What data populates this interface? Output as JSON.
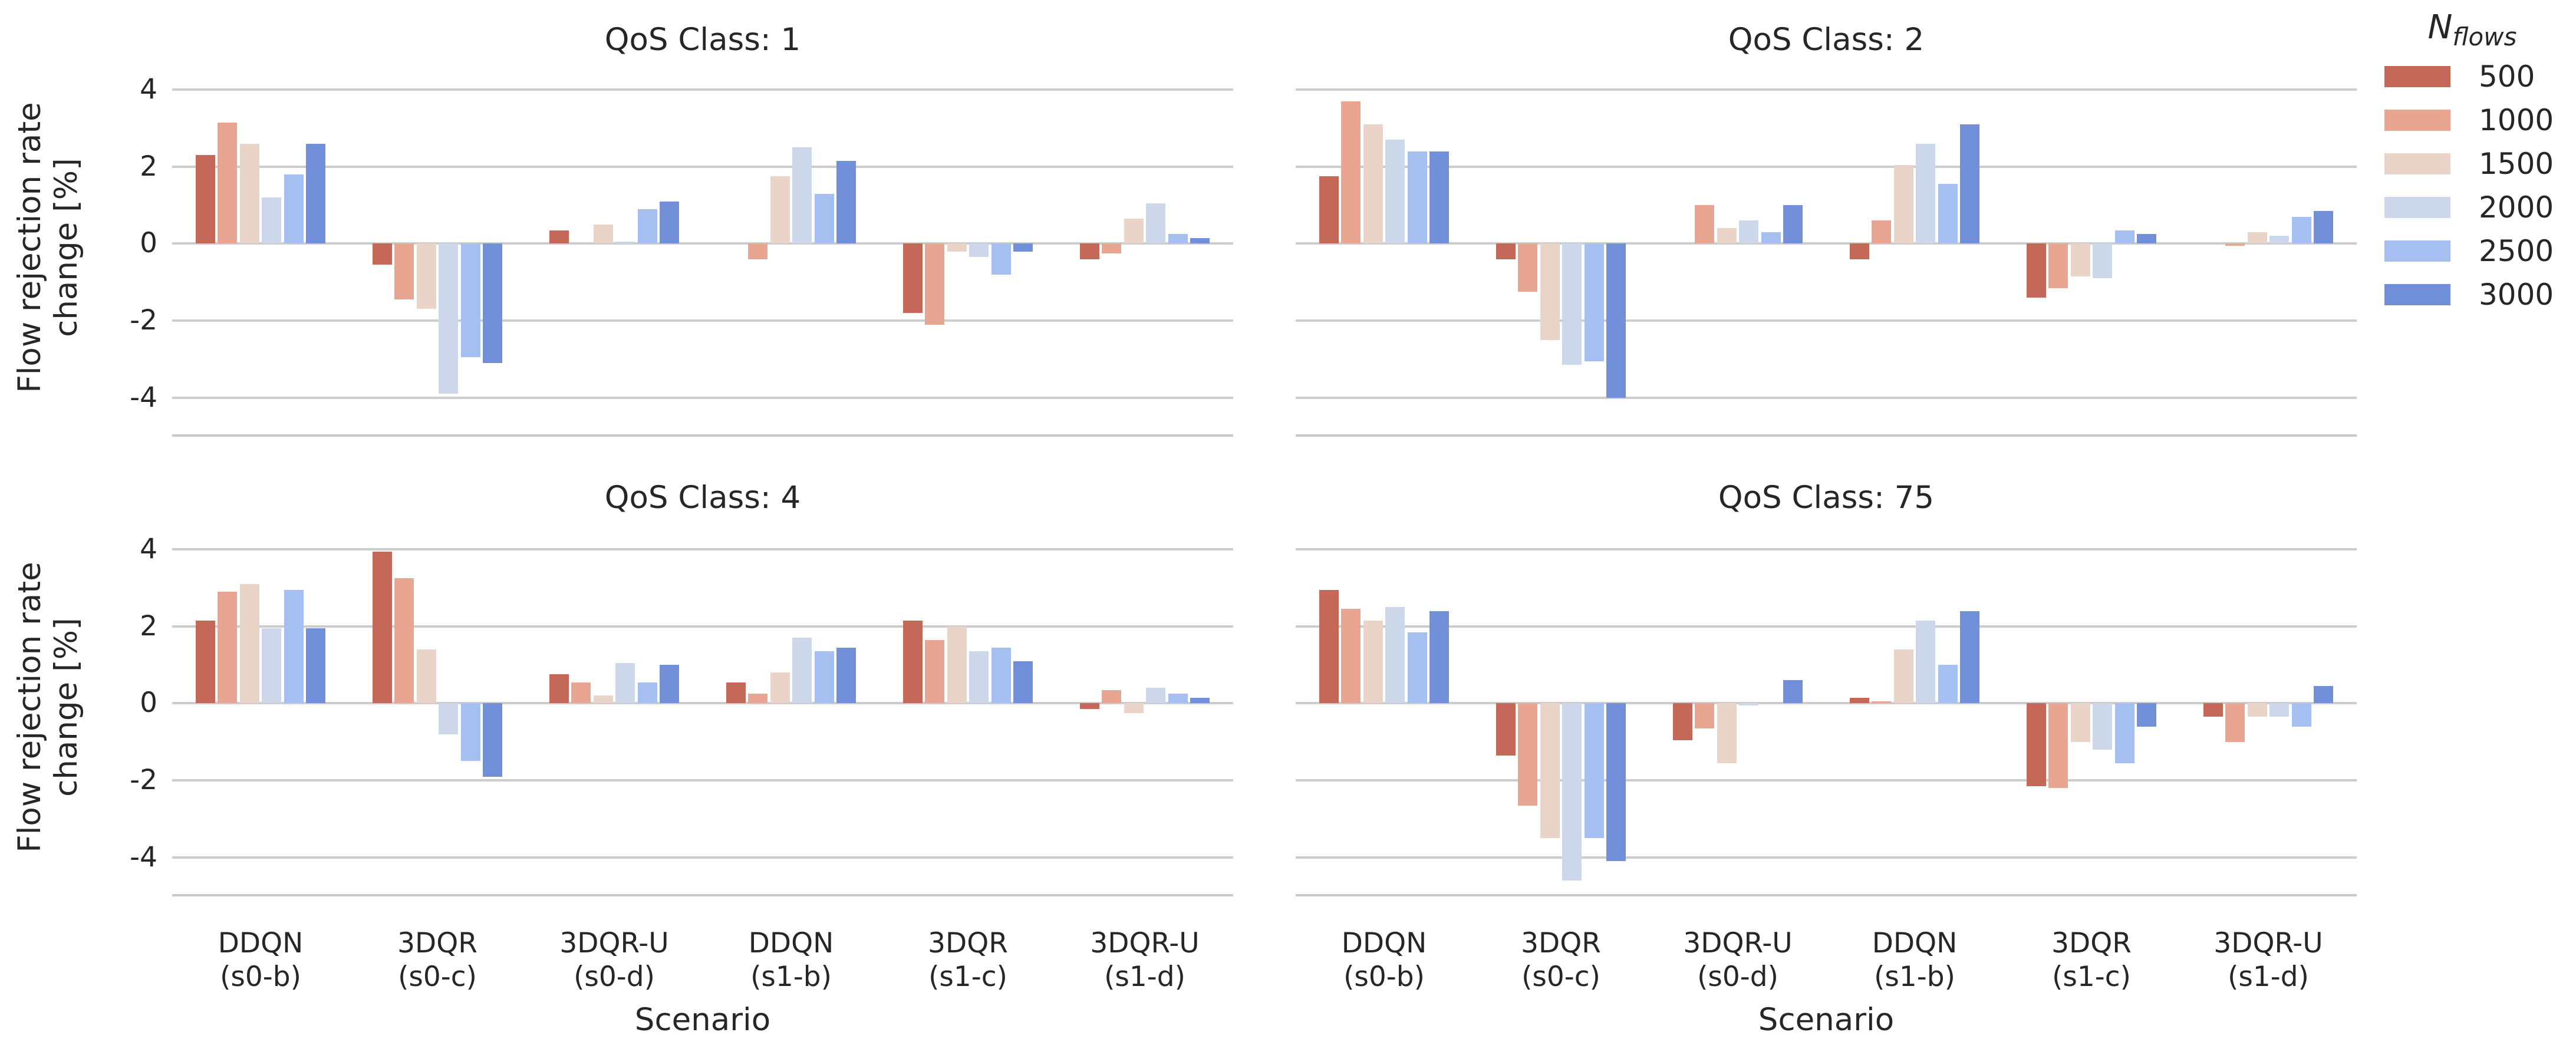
{
  "figure": {
    "ylabel_line1": "Flow rejection rate",
    "ylabel_line2": "change [%]",
    "xlabel": "Scenario",
    "yticks": [
      4,
      2,
      0,
      -2,
      -4
    ],
    "ylim": [
      -5.0,
      4.8
    ],
    "category_labels": [
      {
        "l1": "DDQN",
        "l2": "(s0-b)"
      },
      {
        "l1": "3DQR",
        "l2": "(s0-c)"
      },
      {
        "l1": "3DQR-U",
        "l2": "(s0-d)"
      },
      {
        "l1": "DDQN",
        "l2": "(s1-b)"
      },
      {
        "l1": "3DQR",
        "l2": "(s1-c)"
      },
      {
        "l1": "3DQR-U",
        "l2": "(s1-d)"
      }
    ],
    "grid_color": "#cdcdcd",
    "text_color": "#262626",
    "background_color": "#ffffff"
  },
  "legend": {
    "title_main": "N",
    "title_sub": "flows",
    "entries": [
      {
        "label": "500",
        "color": "#c4685a"
      },
      {
        "label": "1000",
        "color": "#e8a591"
      },
      {
        "label": "1500",
        "color": "#ead4c8"
      },
      {
        "label": "2000",
        "color": "#ccd8ea"
      },
      {
        "label": "2500",
        "color": "#a5c0f0"
      },
      {
        "label": "3000",
        "color": "#7290da"
      }
    ]
  },
  "chart_data": [
    {
      "type": "bar",
      "title": "QoS Class: 1",
      "xlabel": "Scenario",
      "ylabel": "Flow rejection rate change [%]",
      "ylim": [
        -5.0,
        4.8
      ],
      "yticks": [
        4,
        2,
        0,
        -2,
        -4
      ],
      "grid": true,
      "legend_position": "upper-right-outside",
      "categories": [
        "DDQN (s0-b)",
        "3DQR (s0-c)",
        "3DQR-U (s0-d)",
        "DDQN (s1-b)",
        "3DQR (s1-c)",
        "3DQR-U (s1-d)"
      ],
      "series": [
        {
          "name": "500",
          "values": [
            2.3,
            -0.55,
            0.35,
            0.0,
            -1.8,
            -0.4
          ]
        },
        {
          "name": "1000",
          "values": [
            3.15,
            -1.45,
            0.0,
            -0.4,
            -2.1,
            -0.25
          ]
        },
        {
          "name": "1500",
          "values": [
            2.6,
            -1.7,
            0.5,
            1.75,
            -0.2,
            0.65
          ]
        },
        {
          "name": "2000",
          "values": [
            1.2,
            -3.9,
            0.05,
            2.5,
            -0.35,
            1.05
          ]
        },
        {
          "name": "2500",
          "values": [
            1.8,
            -2.95,
            0.9,
            1.3,
            -0.8,
            0.25
          ]
        },
        {
          "name": "3000",
          "values": [
            2.6,
            -3.1,
            1.1,
            2.15,
            -0.2,
            0.15
          ]
        }
      ]
    },
    {
      "type": "bar",
      "title": "QoS Class: 2",
      "xlabel": "Scenario",
      "ylabel": "Flow rejection rate change [%]",
      "ylim": [
        -5.0,
        4.8
      ],
      "yticks": [
        4,
        2,
        0,
        -2,
        -4
      ],
      "grid": true,
      "categories": [
        "DDQN (s0-b)",
        "3DQR (s0-c)",
        "3DQR-U (s0-d)",
        "DDQN (s1-b)",
        "3DQR (s1-c)",
        "3DQR-U (s1-d)"
      ],
      "series": [
        {
          "name": "500",
          "values": [
            1.75,
            -0.4,
            0.0,
            -0.4,
            -1.4,
            0.0
          ]
        },
        {
          "name": "1000",
          "values": [
            3.7,
            -1.25,
            1.0,
            0.6,
            -1.15,
            -0.05
          ]
        },
        {
          "name": "1500",
          "values": [
            3.1,
            -2.5,
            0.4,
            2.05,
            -0.85,
            0.3
          ]
        },
        {
          "name": "2000",
          "values": [
            2.7,
            -3.15,
            0.6,
            2.6,
            -0.9,
            0.2
          ]
        },
        {
          "name": "2500",
          "values": [
            2.4,
            -3.05,
            0.3,
            1.55,
            0.35,
            0.7
          ]
        },
        {
          "name": "3000",
          "values": [
            2.4,
            -4.0,
            1.0,
            3.1,
            0.25,
            0.85
          ]
        }
      ]
    },
    {
      "type": "bar",
      "title": "QoS Class: 4",
      "xlabel": "Scenario",
      "ylabel": "Flow rejection rate change [%]",
      "ylim": [
        -5.0,
        4.8
      ],
      "yticks": [
        4,
        2,
        0,
        -2,
        -4
      ],
      "grid": true,
      "categories": [
        "DDQN (s0-b)",
        "3DQR (s0-c)",
        "3DQR-U (s0-d)",
        "DDQN (s1-b)",
        "3DQR (s1-c)",
        "3DQR-U (s1-d)"
      ],
      "series": [
        {
          "name": "500",
          "values": [
            2.15,
            3.95,
            0.75,
            0.55,
            2.15,
            -0.15
          ]
        },
        {
          "name": "1000",
          "values": [
            2.9,
            3.25,
            0.55,
            0.25,
            1.65,
            0.35
          ]
        },
        {
          "name": "1500",
          "values": [
            3.1,
            1.4,
            0.2,
            0.8,
            2.0,
            -0.25
          ]
        },
        {
          "name": "2000",
          "values": [
            1.95,
            -0.8,
            1.05,
            1.7,
            1.35,
            0.4
          ]
        },
        {
          "name": "2500",
          "values": [
            2.95,
            -1.5,
            0.55,
            1.35,
            1.45,
            0.25
          ]
        },
        {
          "name": "3000",
          "values": [
            1.95,
            -1.9,
            1.0,
            1.45,
            1.1,
            0.15
          ]
        }
      ]
    },
    {
      "type": "bar",
      "title": "QoS Class: 75",
      "xlabel": "Scenario",
      "ylabel": "Flow rejection rate change [%]",
      "ylim": [
        -5.0,
        4.8
      ],
      "yticks": [
        4,
        2,
        0,
        -2,
        -4
      ],
      "grid": true,
      "categories": [
        "DDQN (s0-b)",
        "3DQR (s0-c)",
        "3DQR-U (s0-d)",
        "DDQN (s1-b)",
        "3DQR (s1-c)",
        "3DQR-U (s1-d)"
      ],
      "series": [
        {
          "name": "500",
          "values": [
            2.95,
            -1.35,
            -0.95,
            0.15,
            -2.15,
            -0.35
          ]
        },
        {
          "name": "1000",
          "values": [
            2.45,
            -2.65,
            -0.65,
            0.05,
            -2.2,
            -1.0
          ]
        },
        {
          "name": "1500",
          "values": [
            2.15,
            -3.5,
            -1.55,
            1.4,
            -1.0,
            -0.35
          ]
        },
        {
          "name": "2000",
          "values": [
            2.5,
            -4.6,
            -0.05,
            2.15,
            -1.2,
            -0.35
          ]
        },
        {
          "name": "2500",
          "values": [
            1.85,
            -3.5,
            0.0,
            1.0,
            -1.55,
            -0.6
          ]
        },
        {
          "name": "3000",
          "values": [
            2.4,
            -4.1,
            0.6,
            2.4,
            -0.6,
            0.45
          ]
        }
      ]
    }
  ]
}
